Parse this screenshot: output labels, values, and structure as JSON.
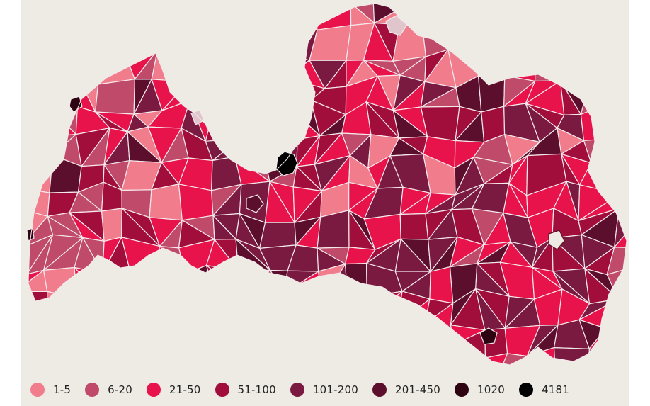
{
  "map": {
    "legend": [
      {
        "label": "1-5",
        "color": "#f07c8c"
      },
      {
        "label": "6-20",
        "color": "#bf4a69"
      },
      {
        "label": "21-50",
        "color": "#e8134a"
      },
      {
        "label": "51-100",
        "color": "#a10e3c"
      },
      {
        "label": "101-200",
        "color": "#7a1a40"
      },
      {
        "label": "201-450",
        "color": "#5c0f2c"
      },
      {
        "label": "1020",
        "color": "#2e0412"
      },
      {
        "label": "4181",
        "color": "#000000"
      }
    ],
    "colors": {
      "background": "#edebe3",
      "border": "#f4e9ec",
      "no_data": "#e0c5cc"
    }
  }
}
